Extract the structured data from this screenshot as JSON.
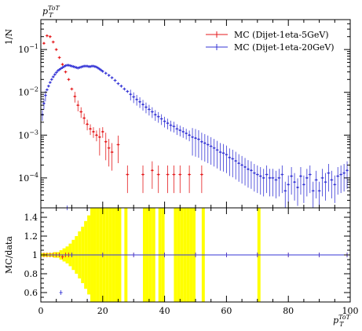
{
  "chart_data": [
    {
      "type": "scatter",
      "title": "p_T^{ToT}",
      "xlabel": "",
      "ylabel": "1/N",
      "xlim": [
        0,
        100
      ],
      "ylim": [
        2e-05,
        0.5
      ],
      "yscale": "log",
      "grid": false,
      "legend_placement": "top-right",
      "x_tick_labels": [
        "0",
        "20",
        "40",
        "60",
        "80",
        "100"
      ],
      "y_tick_labels": [
        "10^-1",
        "10^-2",
        "10^-3",
        "10^-4"
      ],
      "series": [
        {
          "name": "MC (Dijet-1eta-5GeV)",
          "color": "#e41a1c",
          "x": [
            1,
            2,
            3,
            4,
            5,
            6,
            7,
            8,
            9,
            10,
            11,
            12,
            13,
            14,
            15,
            16,
            17,
            18,
            19,
            20,
            21,
            22,
            23,
            25,
            28,
            33,
            36,
            38,
            41,
            43,
            45,
            48,
            52
          ],
          "y": [
            0.14,
            0.21,
            0.2,
            0.15,
            0.1,
            0.065,
            0.045,
            0.03,
            0.02,
            0.012,
            0.008,
            0.005,
            0.0035,
            0.0025,
            0.0018,
            0.0014,
            0.0012,
            0.001,
            0.0009,
            0.0012,
            0.0007,
            0.0005,
            0.0004,
            0.0006,
            0.00012,
            0.00012,
            0.00015,
            0.00012,
            0.00012,
            0.00012,
            0.00012,
            0.00012,
            0.00012
          ]
        },
        {
          "name": "MC (Dijet-1eta-20GeV)",
          "color": "#3636d6",
          "x": [
            0.5,
            1,
            1.5,
            2,
            2.5,
            3,
            3.5,
            4,
            4.5,
            5,
            5.5,
            6,
            6.5,
            7,
            7.5,
            8,
            8.5,
            9,
            9.5,
            10,
            10.5,
            11,
            11.5,
            12,
            12.5,
            13,
            13.5,
            14,
            14.5,
            15,
            15.5,
            16,
            16.5,
            17,
            17.5,
            18,
            18.5,
            19,
            19.5,
            20,
            21,
            22,
            23,
            24,
            25,
            26,
            27,
            28,
            29,
            30,
            31,
            32,
            33,
            34,
            35,
            36,
            37,
            38,
            39,
            40,
            41,
            42,
            43,
            44,
            45,
            46,
            47,
            48,
            49,
            50,
            51,
            52,
            53,
            54,
            55,
            56,
            57,
            58,
            59,
            60,
            61,
            62,
            63,
            64,
            65,
            66,
            67,
            68,
            69,
            70,
            71,
            72,
            73,
            74,
            75,
            76,
            77,
            78,
            79,
            80,
            81,
            82,
            83,
            84,
            85,
            86,
            87,
            88,
            89,
            90,
            91,
            92,
            93,
            94,
            95,
            96,
            97,
            98,
            99
          ],
          "y": [
            0.003,
            0.0055,
            0.0085,
            0.0115,
            0.014,
            0.017,
            0.02,
            0.023,
            0.026,
            0.029,
            0.032,
            0.034,
            0.036,
            0.038,
            0.04,
            0.042,
            0.043,
            0.043,
            0.042,
            0.041,
            0.04,
            0.039,
            0.038,
            0.037,
            0.038,
            0.039,
            0.04,
            0.041,
            0.041,
            0.041,
            0.04,
            0.04,
            0.041,
            0.041,
            0.04,
            0.039,
            0.037,
            0.035,
            0.033,
            0.031,
            0.028,
            0.025,
            0.022,
            0.019,
            0.016,
            0.014,
            0.012,
            0.0105,
            0.009,
            0.0078,
            0.0068,
            0.006,
            0.0052,
            0.0045,
            0.004,
            0.0035,
            0.003,
            0.0027,
            0.0024,
            0.0021,
            0.0019,
            0.0017,
            0.0016,
            0.0014,
            0.0013,
            0.0012,
            0.0011,
            0.001,
            0.0009,
            0.00085,
            0.0008,
            0.0007,
            0.00065,
            0.0006,
            0.00055,
            0.0005,
            0.00045,
            0.0004,
            0.00038,
            0.00035,
            0.0003,
            0.00028,
            0.00025,
            0.00022,
            0.0002,
            0.00018,
            0.00016,
            0.00015,
            0.00013,
            0.00012,
            0.00011,
            0.0001,
            0.00012,
            0.0001,
            0.0001,
            9e-05,
            0.0001,
            0.00012,
            5e-05,
            7e-05,
            0.00011,
            8e-05,
            6e-05,
            0.00011,
            7e-05,
            0.0001,
            0.00012,
            5e-05,
            9e-05,
            5e-05,
            0.0001,
            8e-05,
            0.00013,
            9e-05,
            7e-05,
            0.00011,
            0.00012,
            0.00013,
            0.00015
          ]
        }
      ]
    },
    {
      "type": "scatter",
      "title": "",
      "xlabel": "p_T^{ToT}",
      "ylabel": "MC/data",
      "xlim": [
        0,
        100
      ],
      "ylim": [
        0.5,
        1.5
      ],
      "grid": false,
      "x_tick_labels": [
        "0",
        "20",
        "40",
        "60",
        "80",
        "100"
      ],
      "y_tick_labels": [
        "1.4",
        "1.2",
        "1",
        "0.8",
        "0.6"
      ],
      "reference_line": 1.0,
      "uncertainty_band_color": "#ffff00",
      "uncertainty_band": {
        "x": [
          0,
          1,
          2,
          3,
          4,
          5,
          6,
          7,
          8,
          9,
          10,
          11,
          12,
          13,
          14,
          15,
          16,
          17,
          18,
          19,
          20,
          21,
          22,
          23,
          24,
          25,
          27,
          33,
          34,
          35,
          36,
          38,
          39,
          43,
          44,
          45,
          46,
          47,
          48,
          49,
          52,
          70
        ],
        "half_width": [
          0.02,
          0.02,
          0.02,
          0.02,
          0.03,
          0.03,
          0.05,
          0.07,
          0.09,
          0.12,
          0.16,
          0.2,
          0.25,
          0.3,
          0.36,
          0.42,
          0.5,
          0.6,
          0.9,
          0.9,
          0.9,
          0.9,
          0.9,
          0.9,
          0.9,
          0.9,
          0.9,
          0.9,
          0.9,
          0.9,
          0.9,
          0.9,
          0.9,
          0.9,
          0.9,
          0.9,
          0.9,
          0.9,
          0.9,
          0.9,
          0.9,
          0.9
        ]
      },
      "series": [
        {
          "name": "MC (Dijet-1eta-5GeV)",
          "color": "#e41a1c",
          "x": [
            1,
            2,
            3,
            4,
            5,
            6,
            7,
            8,
            9,
            10,
            20,
            30,
            40,
            50,
            60,
            70,
            80,
            90,
            99
          ],
          "y": [
            1,
            1,
            1,
            1,
            1,
            1,
            0.98,
            1,
            1,
            1,
            1,
            1,
            1,
            1,
            1,
            1,
            1,
            1,
            1
          ]
        },
        {
          "name": "MC (Dijet-1eta-20GeV)",
          "color": "#3636d6",
          "x": [
            6.5,
            8.5,
            10,
            20,
            30,
            40,
            50,
            60,
            70,
            80,
            90,
            99
          ],
          "y": [
            0.6,
            1.52,
            1,
            1,
            1,
            1,
            1,
            1,
            1,
            1,
            1,
            1
          ]
        }
      ]
    }
  ]
}
